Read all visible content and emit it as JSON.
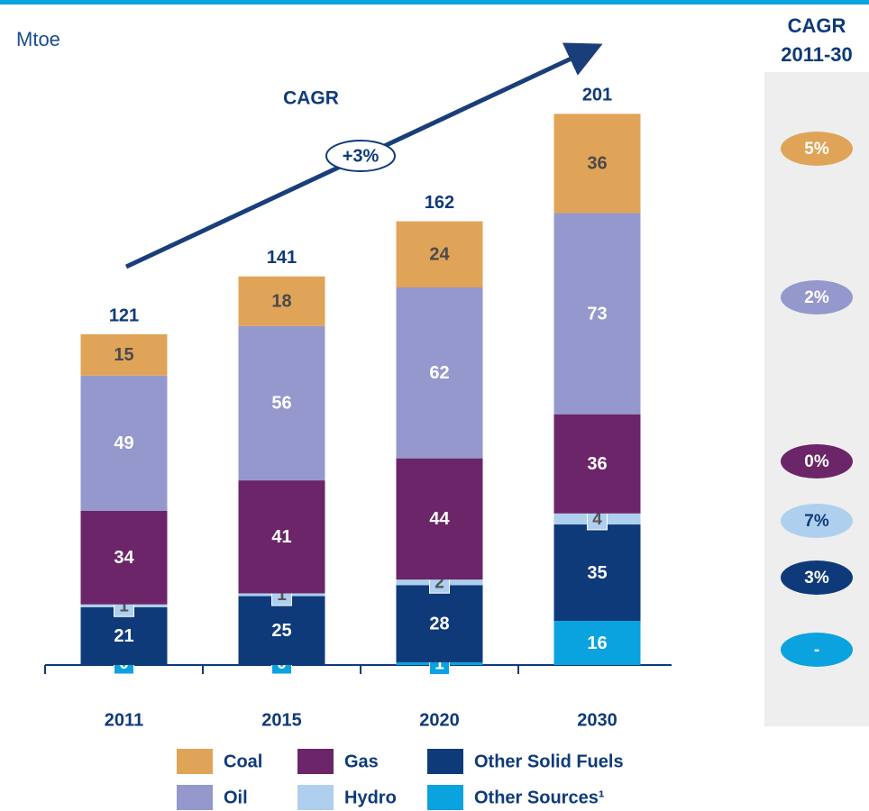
{
  "chart_data": {
    "type": "stacked_bar",
    "y_label": "Mtoe",
    "categories": [
      "2011",
      "2015",
      "2020",
      "2030"
    ],
    "series": [
      {
        "name": "Other Sources¹",
        "color": "#0ba2e0",
        "label_color": "#ffffff",
        "values": [
          0,
          0,
          1,
          16
        ]
      },
      {
        "name": "Other Solid Fuels",
        "color": "#0f3a7a",
        "label_color": "#ffffff",
        "values": [
          21,
          25,
          28,
          35
        ]
      },
      {
        "name": "Hydro",
        "color": "#aed0ee",
        "label_color": "#555555",
        "values": [
          1,
          1,
          2,
          4
        ]
      },
      {
        "name": "Gas",
        "color": "#6b2568",
        "label_color": "#ffffff",
        "values": [
          34,
          41,
          44,
          36
        ]
      },
      {
        "name": "Oil",
        "color": "#9598cc",
        "label_color": "#ffffff",
        "values": [
          49,
          56,
          62,
          73
        ]
      },
      {
        "name": "Coal",
        "color": "#e0a458",
        "label_color": "#4a4a4a",
        "values": [
          15,
          18,
          24,
          36
        ]
      }
    ],
    "totals": [
      121,
      141,
      162,
      201
    ],
    "ylim": [
      0,
      240
    ],
    "trend_title": "CAGR",
    "trend_label": "+3%",
    "cagr_title": [
      "CAGR",
      "2011-30"
    ],
    "cagr_labels": [
      "-",
      "3%",
      "7%",
      "0%",
      "2%",
      "5%"
    ]
  }
}
